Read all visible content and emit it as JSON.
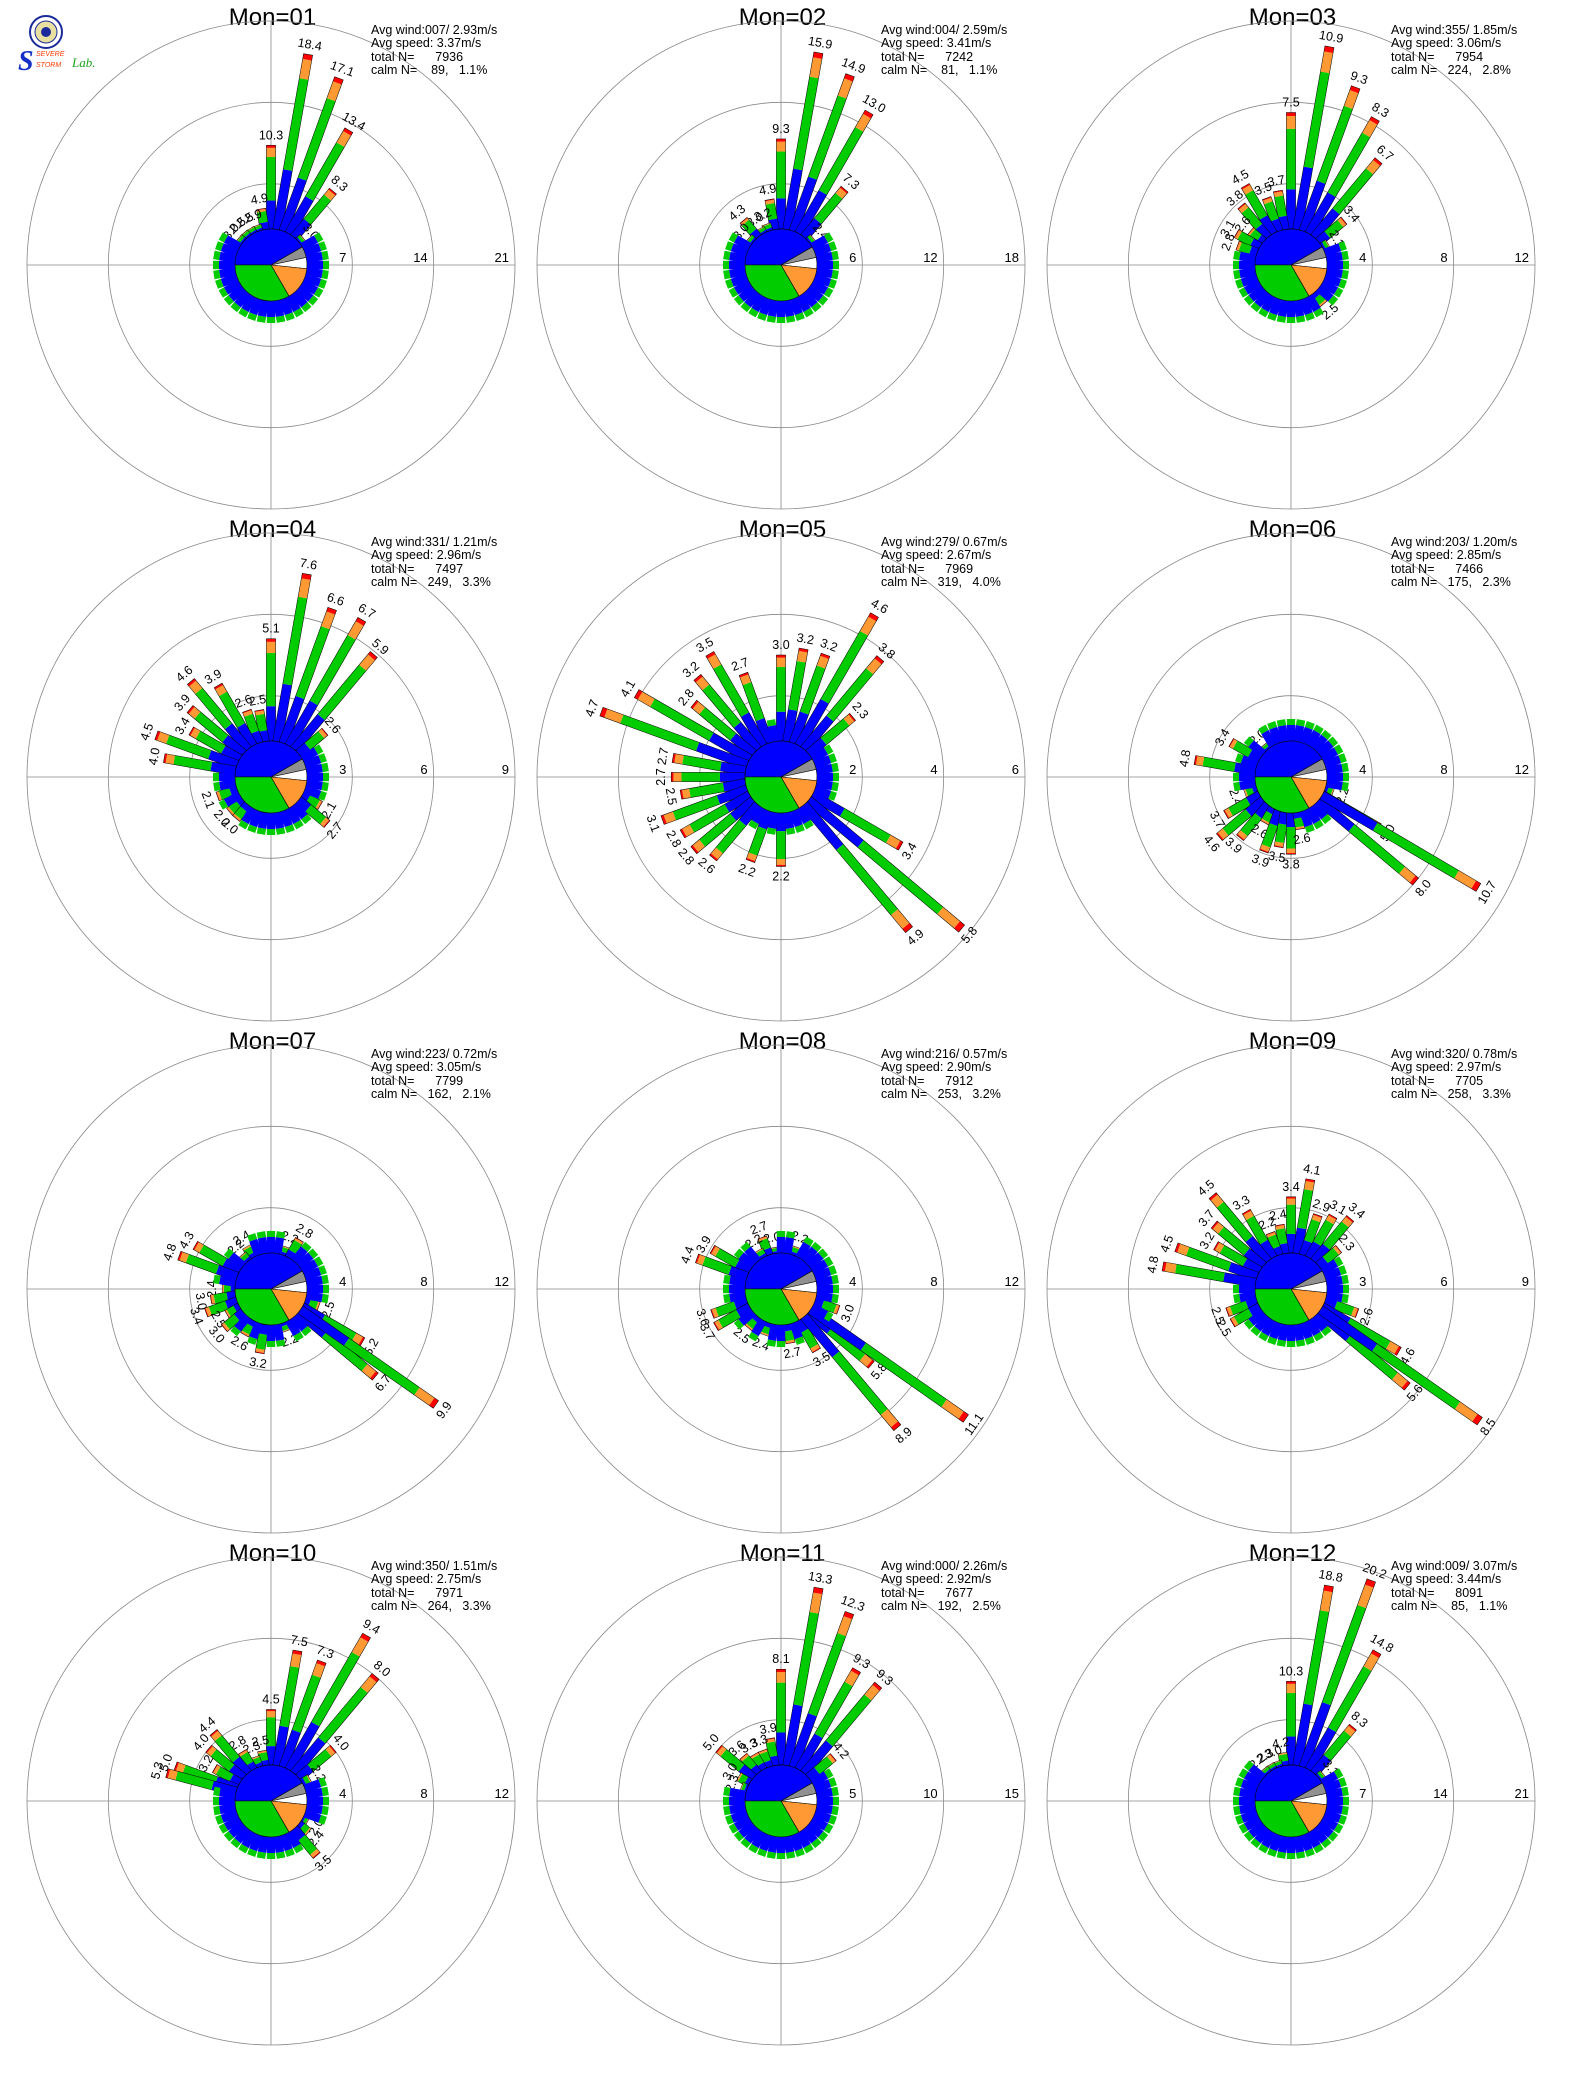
{
  "logo": {
    "text_top": "SEVERE",
    "text_mid": "STORM",
    "text_lab": "Lab.",
    "letter": "S"
  },
  "colors": {
    "calm": "#909090",
    "class1": "#0000ff",
    "class2": "#00cc00",
    "class3": "#ff9933",
    "class4": "#ff0000",
    "pie_blue": "#0000ff",
    "pie_green": "#00cc00",
    "pie_orange": "#ff9933",
    "pie_gray": "#909090",
    "pie_white": "#ffffff",
    "grid": "#888888"
  },
  "chart_data": [
    {
      "type": "wind-rose",
      "title": "Mon=01",
      "stats": {
        "avg_wind": "Avg wind:007/ 2.93m/s",
        "avg_speed": "Avg speed: 3.37m/s",
        "total": "total N=      7936",
        "calm": "calm N=    89,   1.1%"
      },
      "rings": [
        "7",
        "14",
        "21"
      ],
      "rmax": 21,
      "labels": [
        {
          "dir": 0,
          "value": 10.3
        },
        {
          "dir": 10,
          "value": 18.4
        },
        {
          "dir": 20,
          "value": 17.1
        },
        {
          "dir": 30,
          "value": 13.4
        },
        {
          "dir": 40,
          "value": 8.3
        },
        {
          "dir": 50,
          "value": 3.0
        },
        {
          "dir": 350,
          "value": 4.9
        },
        {
          "dir": 340,
          "value": 2.9
        },
        {
          "dir": 330,
          "value": 2.5
        },
        {
          "dir": 320,
          "value": 2.5
        },
        {
          "dir": 310,
          "value": 3.0
        }
      ]
    },
    {
      "type": "wind-rose",
      "title": "Mon=02",
      "stats": {
        "avg_wind": "Avg wind:004/ 2.59m/s",
        "avg_speed": "Avg speed: 3.41m/s",
        "total": "total N=      7242",
        "calm": "calm N=    81,   1.1%"
      },
      "rings": [
        "6",
        "12",
        "18"
      ],
      "rmax": 18,
      "labels": [
        {
          "dir": 0,
          "value": 9.3
        },
        {
          "dir": 10,
          "value": 15.9
        },
        {
          "dir": 20,
          "value": 14.9
        },
        {
          "dir": 30,
          "value": 13.0
        },
        {
          "dir": 40,
          "value": 7.3
        },
        {
          "dir": 50,
          "value": 2.4
        },
        {
          "dir": 350,
          "value": 4.9
        },
        {
          "dir": 340,
          "value": 3.2
        },
        {
          "dir": 330,
          "value": 3.0
        },
        {
          "dir": 320,
          "value": 4.3
        },
        {
          "dir": 310,
          "value": 3.0
        }
      ]
    },
    {
      "type": "wind-rose",
      "title": "Mon=03",
      "stats": {
        "avg_wind": "Avg wind:355/ 1.85m/s",
        "avg_speed": "Avg speed: 3.06m/s",
        "total": "total N=      7954",
        "calm": "calm N=   224,   2.8%"
      },
      "rings": [
        "4",
        "8",
        "12"
      ],
      "rmax": 12,
      "labels": [
        {
          "dir": 0,
          "value": 7.5
        },
        {
          "dir": 10,
          "value": 10.9
        },
        {
          "dir": 20,
          "value": 9.3
        },
        {
          "dir": 30,
          "value": 8.3
        },
        {
          "dir": 40,
          "value": 6.7
        },
        {
          "dir": 50,
          "value": 3.4
        },
        {
          "dir": 60,
          "value": 2.1
        },
        {
          "dir": 350,
          "value": 3.7
        },
        {
          "dir": 340,
          "value": 3.5
        },
        {
          "dir": 330,
          "value": 4.5
        },
        {
          "dir": 320,
          "value": 3.8
        },
        {
          "dir": 310,
          "value": 2.6
        },
        {
          "dir": 300,
          "value": 3.1
        },
        {
          "dir": 290,
          "value": 2.8
        },
        {
          "dir": 140,
          "value": 2.5
        }
      ]
    },
    {
      "type": "wind-rose",
      "title": "Mon=04",
      "stats": {
        "avg_wind": "Avg wind:331/ 1.21m/s",
        "avg_speed": "Avg speed: 2.96m/s",
        "total": "total N=      7497",
        "calm": "calm N=   249,   3.3%"
      },
      "rings": [
        "3",
        "6",
        "9"
      ],
      "rmax": 9,
      "labels": [
        {
          "dir": 0,
          "value": 5.1
        },
        {
          "dir": 10,
          "value": 7.6
        },
        {
          "dir": 20,
          "value": 6.6
        },
        {
          "dir": 30,
          "value": 6.7
        },
        {
          "dir": 40,
          "value": 5.9
        },
        {
          "dir": 50,
          "value": 2.6
        },
        {
          "dir": 350,
          "value": 2.5
        },
        {
          "dir": 340,
          "value": 2.6
        },
        {
          "dir": 330,
          "value": 3.9
        },
        {
          "dir": 320,
          "value": 4.6
        },
        {
          "dir": 310,
          "value": 3.9
        },
        {
          "dir": 300,
          "value": 3.4
        },
        {
          "dir": 290,
          "value": 4.5
        },
        {
          "dir": 280,
          "value": 4.0
        },
        {
          "dir": 250,
          "value": 2.1
        },
        {
          "dir": 230,
          "value": 2.0
        },
        {
          "dir": 220,
          "value": 2.0
        },
        {
          "dir": 120,
          "value": 2.1
        },
        {
          "dir": 130,
          "value": 2.7
        }
      ]
    },
    {
      "type": "wind-rose",
      "title": "Mon=05",
      "stats": {
        "avg_wind": "Avg wind:279/ 0.67m/s",
        "avg_speed": "Avg speed: 2.67m/s",
        "total": "total N=      7969",
        "calm": "calm N=   319,   4.0%"
      },
      "rings": [
        "2",
        "4",
        "6"
      ],
      "rmax": 6,
      "labels": [
        {
          "dir": 0,
          "value": 3.0
        },
        {
          "dir": 10,
          "value": 3.2
        },
        {
          "dir": 20,
          "value": 3.2
        },
        {
          "dir": 30,
          "value": 4.6
        },
        {
          "dir": 40,
          "value": 3.8
        },
        {
          "dir": 50,
          "value": 2.3
        },
        {
          "dir": 340,
          "value": 2.7
        },
        {
          "dir": 330,
          "value": 3.5
        },
        {
          "dir": 320,
          "value": 3.2
        },
        {
          "dir": 310,
          "value": 2.8
        },
        {
          "dir": 300,
          "value": 4.1
        },
        {
          "dir": 290,
          "value": 4.7
        },
        {
          "dir": 280,
          "value": 2.7
        },
        {
          "dir": 270,
          "value": 2.7
        },
        {
          "dir": 260,
          "value": 2.5
        },
        {
          "dir": 250,
          "value": 3.1
        },
        {
          "dir": 240,
          "value": 2.8
        },
        {
          "dir": 230,
          "value": 2.8
        },
        {
          "dir": 220,
          "value": 2.6
        },
        {
          "dir": 200,
          "value": 2.2
        },
        {
          "dir": 180,
          "value": 2.2
        },
        {
          "dir": 120,
          "value": 3.4
        },
        {
          "dir": 130,
          "value": 5.8
        },
        {
          "dir": 140,
          "value": 4.9
        }
      ]
    },
    {
      "type": "wind-rose",
      "title": "Mon=06",
      "stats": {
        "avg_wind": "Avg wind:203/ 1.20m/s",
        "avg_speed": "Avg speed: 2.85m/s",
        "total": "total N=      7466",
        "calm": "calm N=   175,   2.3%"
      },
      "rings": [
        "4",
        "8",
        "12"
      ],
      "rmax": 12,
      "labels": [
        {
          "dir": 300,
          "value": 3.4
        },
        {
          "dir": 320,
          "value": 2.0
        },
        {
          "dir": 280,
          "value": 4.8
        },
        {
          "dir": 250,
          "value": 2.4
        },
        {
          "dir": 240,
          "value": 3.7
        },
        {
          "dir": 230,
          "value": 4.6
        },
        {
          "dir": 220,
          "value": 3.9
        },
        {
          "dir": 210,
          "value": 2.6
        },
        {
          "dir": 200,
          "value": 3.9
        },
        {
          "dir": 190,
          "value": 3.5
        },
        {
          "dir": 180,
          "value": 3.8
        },
        {
          "dir": 170,
          "value": 2.6
        },
        {
          "dir": 110,
          "value": 2.2
        },
        {
          "dir": 120,
          "value": 5.0
        },
        {
          "dir": 130,
          "value": 8.0
        },
        {
          "dir": 120.5,
          "value": 10.7
        }
      ]
    },
    {
      "type": "wind-rose",
      "title": "Mon=07",
      "stats": {
        "avg_wind": "Avg wind:223/ 0.72m/s",
        "avg_speed": "Avg speed: 3.05m/s",
        "total": "total N=      7799",
        "calm": "calm N=   162,   2.1%"
      },
      "rings": [
        "4",
        "8",
        "12"
      ],
      "rmax": 12,
      "labels": [
        {
          "dir": 20,
          "value": 2.2
        },
        {
          "dir": 30,
          "value": 2.8
        },
        {
          "dir": 330,
          "value": 2.4
        },
        {
          "dir": 320,
          "value": 2.2
        },
        {
          "dir": 300,
          "value": 4.3
        },
        {
          "dir": 290,
          "value": 4.8
        },
        {
          "dir": 270,
          "value": 2.4
        },
        {
          "dir": 260,
          "value": 3.0
        },
        {
          "dir": 250,
          "value": 3.4
        },
        {
          "dir": 240,
          "value": 2.5
        },
        {
          "dir": 230,
          "value": 3.0
        },
        {
          "dir": 210,
          "value": 2.6
        },
        {
          "dir": 190,
          "value": 3.2
        },
        {
          "dir": 160,
          "value": 2.2
        },
        {
          "dir": 110,
          "value": 2.5
        },
        {
          "dir": 120,
          "value": 5.2
        },
        {
          "dir": 130,
          "value": 6.7
        },
        {
          "dir": 125,
          "value": 9.9
        }
      ]
    },
    {
      "type": "wind-rose",
      "title": "Mon=08",
      "stats": {
        "avg_wind": "Avg wind:216/ 0.57m/s",
        "avg_speed": "Avg speed: 2.90m/s",
        "total": "total N=      7912",
        "calm": "calm N=   253,   3.2%"
      },
      "rings": [
        "4",
        "8",
        "12"
      ],
      "rmax": 12,
      "labels": [
        {
          "dir": 20,
          "value": 2.2
        },
        {
          "dir": 350,
          "value": 2.0
        },
        {
          "dir": 340,
          "value": 2.7
        },
        {
          "dir": 330,
          "value": 2.2
        },
        {
          "dir": 300,
          "value": 3.9
        },
        {
          "dir": 290,
          "value": 4.4
        },
        {
          "dir": 250,
          "value": 3.6
        },
        {
          "dir": 240,
          "value": 3.7
        },
        {
          "dir": 220,
          "value": 2.5
        },
        {
          "dir": 200,
          "value": 2.4
        },
        {
          "dir": 170,
          "value": 2.7
        },
        {
          "dir": 150,
          "value": 3.5
        },
        {
          "dir": 110,
          "value": 3.0
        },
        {
          "dir": 130,
          "value": 5.8
        },
        {
          "dir": 125,
          "value": 11.1
        },
        {
          "dir": 140,
          "value": 8.9
        }
      ]
    },
    {
      "type": "wind-rose",
      "title": "Mon=09",
      "stats": {
        "avg_wind": "Avg wind:320/ 0.78m/s",
        "avg_speed": "Avg speed: 2.97m/s",
        "total": "total N=      7705",
        "calm": "calm N=   258,   3.3%"
      },
      "rings": [
        "3",
        "6",
        "9"
      ],
      "rmax": 9,
      "labels": [
        {
          "dir": 0,
          "value": 3.4
        },
        {
          "dir": 10,
          "value": 4.1
        },
        {
          "dir": 20,
          "value": 2.9
        },
        {
          "dir": 30,
          "value": 3.1
        },
        {
          "dir": 40,
          "value": 3.4
        },
        {
          "dir": 50,
          "value": 2.3
        },
        {
          "dir": 350,
          "value": 2.4
        },
        {
          "dir": 340,
          "value": 2.2
        },
        {
          "dir": 330,
          "value": 3.3
        },
        {
          "dir": 320,
          "value": 4.5
        },
        {
          "dir": 310,
          "value": 3.7
        },
        {
          "dir": 300,
          "value": 3.2
        },
        {
          "dir": 290,
          "value": 4.5
        },
        {
          "dir": 280,
          "value": 4.8
        },
        {
          "dir": 250,
          "value": 2.5
        },
        {
          "dir": 240,
          "value": 2.5
        },
        {
          "dir": 110,
          "value": 2.6
        },
        {
          "dir": 120,
          "value": 4.6
        },
        {
          "dir": 130,
          "value": 5.6
        },
        {
          "dir": 125,
          "value": 8.5
        }
      ]
    },
    {
      "type": "wind-rose",
      "title": "Mon=10",
      "stats": {
        "avg_wind": "Avg wind:350/ 1.51m/s",
        "avg_speed": "Avg speed: 2.75m/s",
        "total": "total N=      7971",
        "calm": "calm N=   264,   3.3%"
      },
      "rings": [
        "4",
        "8",
        "12"
      ],
      "rmax": 12,
      "labels": [
        {
          "dir": 0,
          "value": 4.5
        },
        {
          "dir": 10,
          "value": 7.5
        },
        {
          "dir": 20,
          "value": 7.3
        },
        {
          "dir": 30,
          "value": 9.4
        },
        {
          "dir": 40,
          "value": 8.0
        },
        {
          "dir": 50,
          "value": 4.0
        },
        {
          "dir": 60,
          "value": 2.2
        },
        {
          "dir": 350,
          "value": 2.5
        },
        {
          "dir": 340,
          "value": 2.3
        },
        {
          "dir": 330,
          "value": 2.8
        },
        {
          "dir": 320,
          "value": 4.4
        },
        {
          "dir": 310,
          "value": 4.0
        },
        {
          "dir": 300,
          "value": 3.2
        },
        {
          "dir": 290,
          "value": 5.0
        },
        {
          "dir": 285,
          "value": 5.3
        },
        {
          "dir": 120,
          "value": 2.0
        },
        {
          "dir": 130,
          "value": 2.4
        },
        {
          "dir": 140,
          "value": 3.5
        }
      ]
    },
    {
      "type": "wind-rose",
      "title": "Mon=11",
      "stats": {
        "avg_wind": "Avg wind:000/ 2.26m/s",
        "avg_speed": "Avg speed: 2.92m/s",
        "total": "total N=      7677",
        "calm": "calm N=   192,   2.5%"
      },
      "rings": [
        "5",
        "10",
        "15"
      ],
      "rmax": 15,
      "labels": [
        {
          "dir": 0,
          "value": 8.1
        },
        {
          "dir": 10,
          "value": 13.3
        },
        {
          "dir": 20,
          "value": 12.3
        },
        {
          "dir": 30,
          "value": 9.3
        },
        {
          "dir": 40,
          "value": 9.3
        },
        {
          "dir": 50,
          "value": 4.2
        },
        {
          "dir": 350,
          "value": 3.9
        },
        {
          "dir": 340,
          "value": 3.3
        },
        {
          "dir": 330,
          "value": 3.3
        },
        {
          "dir": 320,
          "value": 3.6
        },
        {
          "dir": 310,
          "value": 5.0
        },
        {
          "dir": 300,
          "value": 3.0
        },
        {
          "dir": 290,
          "value": 2.3
        }
      ]
    },
    {
      "type": "wind-rose",
      "title": "Mon=12",
      "stats": {
        "avg_wind": "Avg wind:009/ 3.07m/s",
        "avg_speed": "Avg speed: 3.44m/s",
        "total": "total N=      8091",
        "calm": "calm N=    85,   1.1%"
      },
      "rings": [
        "7",
        "14",
        "21"
      ],
      "rmax": 21,
      "labels": [
        {
          "dir": 0,
          "value": 10.3
        },
        {
          "dir": 10,
          "value": 18.8
        },
        {
          "dir": 20,
          "value": 20.2
        },
        {
          "dir": 30,
          "value": 14.8
        },
        {
          "dir": 40,
          "value": 8.3
        },
        {
          "dir": 50,
          "value": 3.1
        },
        {
          "dir": 350,
          "value": 4.2
        },
        {
          "dir": 340,
          "value": 3.0
        },
        {
          "dir": 330,
          "value": 2.3
        },
        {
          "dir": 320,
          "value": 2.2
        }
      ]
    }
  ]
}
